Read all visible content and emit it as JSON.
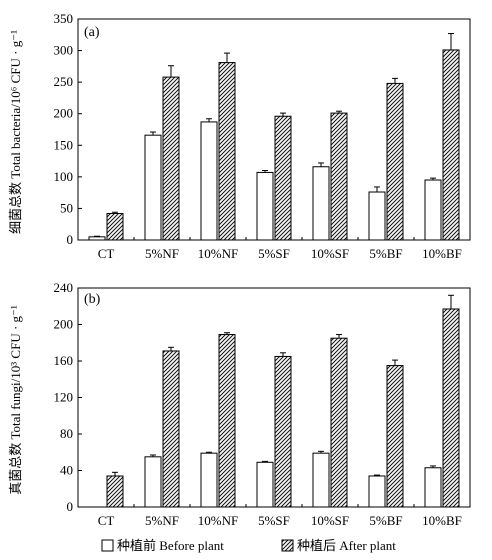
{
  "chart_data": [
    {
      "type": "bar",
      "panel_label": "(a)",
      "ylabel": "细菌总数 Total bacteria/10⁶ CFU · g⁻¹",
      "categories": [
        "CT",
        "5%NF",
        "10%NF",
        "5%SF",
        "10%SF",
        "5%BF",
        "10%BF"
      ],
      "ylim": [
        0,
        350
      ],
      "yticks": [
        0,
        50,
        100,
        150,
        200,
        250,
        300,
        350
      ],
      "series": [
        {
          "name": "种植前 Before plant",
          "values": [
            5,
            166,
            187,
            107,
            116,
            76,
            95
          ],
          "errors": [
            1,
            5,
            5,
            3,
            6,
            8,
            3
          ]
        },
        {
          "name": "种植后 After plant",
          "values": [
            42,
            258,
            281,
            196,
            201,
            248,
            301
          ],
          "errors": [
            2,
            18,
            15,
            5,
            3,
            8,
            26
          ]
        }
      ]
    },
    {
      "type": "bar",
      "panel_label": "(b)",
      "ylabel": "真菌总数 Total fungi/10³ CFU · g⁻¹",
      "categories": [
        "CT",
        "5%NF",
        "10%NF",
        "5%SF",
        "10%SF",
        "5%BF",
        "10%BF"
      ],
      "ylim": [
        0,
        240
      ],
      "yticks": [
        0,
        40,
        80,
        120,
        160,
        200,
        240
      ],
      "series": [
        {
          "name": "种植前 Before plant",
          "values": [
            0,
            55,
            59,
            49,
            59,
            34,
            43
          ],
          "errors": [
            0,
            2,
            1,
            1,
            2,
            1,
            2
          ]
        },
        {
          "name": "种植后 After plant",
          "values": [
            34,
            171,
            189,
            165,
            185,
            155,
            217
          ],
          "errors": [
            4,
            4,
            2,
            4,
            4,
            6,
            15
          ]
        }
      ]
    }
  ],
  "legend": {
    "before_label": "种植前 Before plant",
    "after_label": "种植后 After plant"
  },
  "colors": {
    "ink": "#000000",
    "bar_before_fill": "#ffffff",
    "hatch_fill": "#f0f0f0"
  }
}
